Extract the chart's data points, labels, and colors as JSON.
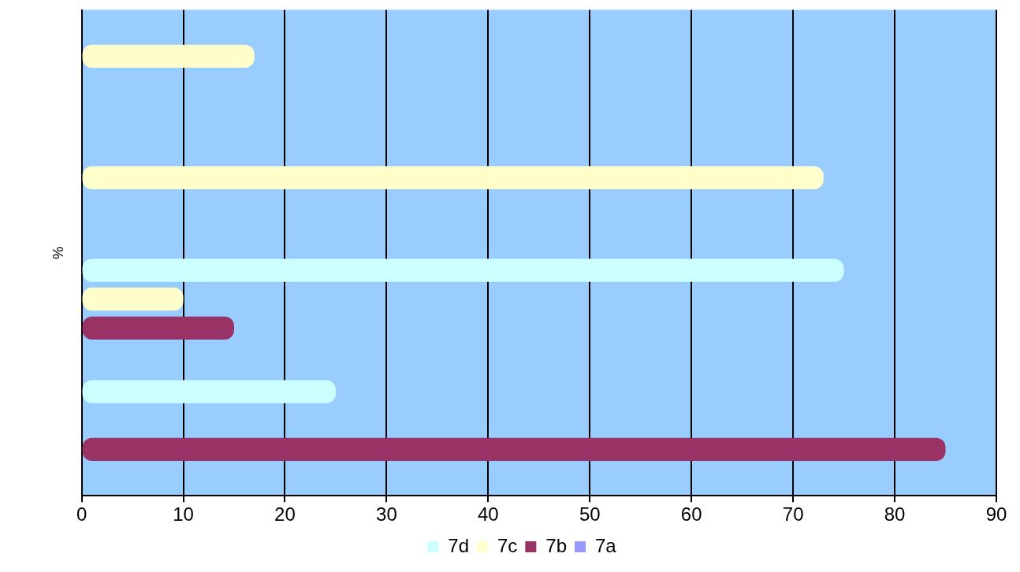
{
  "chart_data": {
    "type": "bar",
    "orientation": "horizontal",
    "ylabel": "%",
    "categories": [
      null,
      null,
      null,
      null
    ],
    "series": [
      {
        "name": "7d",
        "color": "#ccffff",
        "values": [
          null,
          null,
          75,
          25
        ]
      },
      {
        "name": "7c",
        "color": "#ffffcc",
        "values": [
          17,
          73,
          10,
          null
        ]
      },
      {
        "name": "7b",
        "color": "#993366",
        "values": [
          null,
          null,
          15,
          85
        ]
      },
      {
        "name": "7a",
        "color": "#9999ff",
        "values": [
          null,
          null,
          null,
          null
        ]
      }
    ],
    "xlim": [
      0,
      90
    ],
    "xticks": [
      0,
      10,
      20,
      30,
      40,
      50,
      60,
      70,
      80,
      90
    ],
    "grid": "x",
    "legend": "bottom"
  }
}
